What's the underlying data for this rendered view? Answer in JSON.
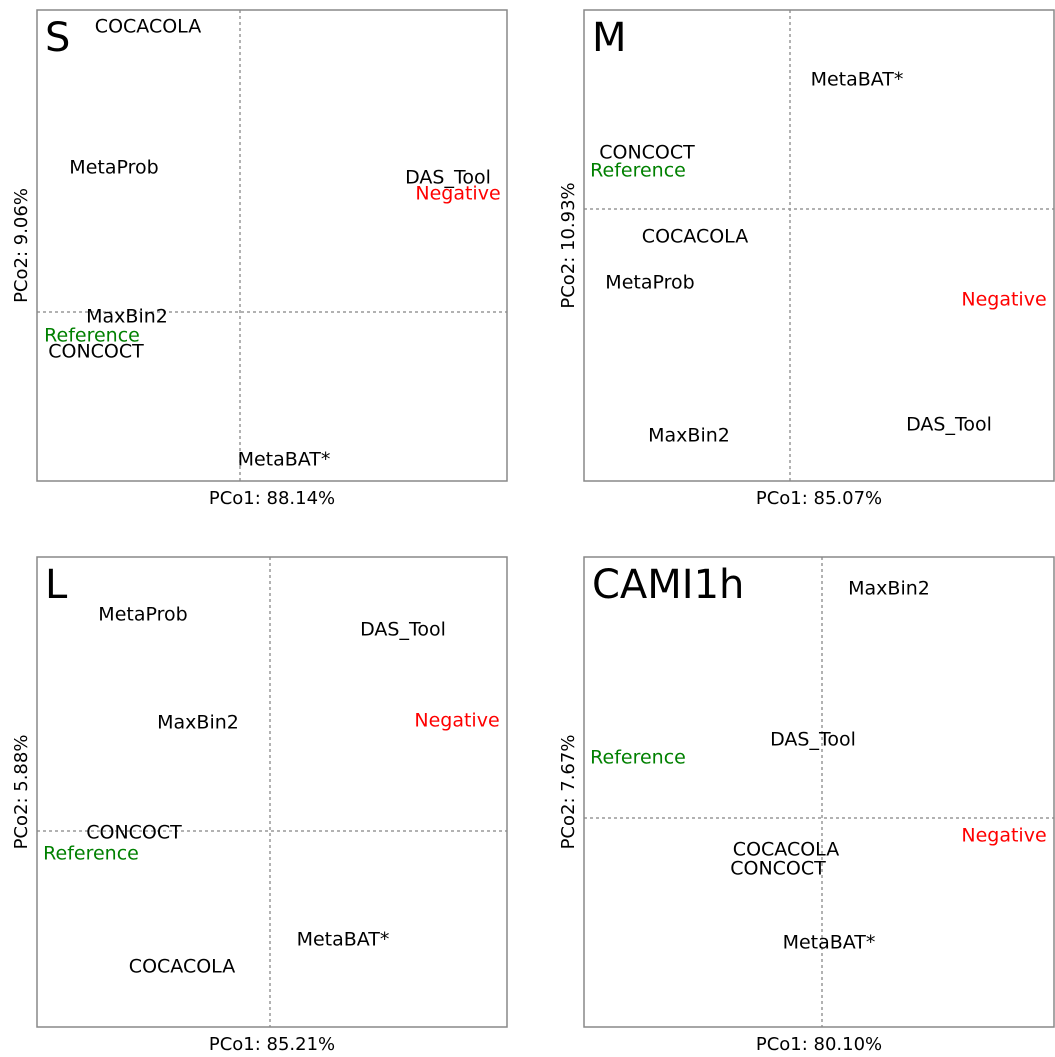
{
  "chart_data": [
    {
      "type": "scatter",
      "title": "S",
      "x_label": "PCo1: 88.14%",
      "y_label": "PCo2: 9.06%",
      "labels": [
        "COCACOLA",
        "MetaProb",
        "DAS_Tool",
        "Negative",
        "MaxBin2",
        "Reference",
        "CONCOCT",
        "MetaBAT*"
      ],
      "x": [
        -0.92,
        -1.26,
        2.08,
        2.18,
        -1.13,
        -1.48,
        -1.44,
        0.44
      ],
      "y": [
        2.85,
        1.44,
        1.34,
        1.18,
        -0.05,
        -0.24,
        -0.4,
        -1.48
      ],
      "colors": [
        "#000000",
        "#000000",
        "#000000",
        "#ff0000",
        "#000000",
        "#008000",
        "#000000",
        "#000000"
      ],
      "xlim": [
        -2.03,
        2.67
      ],
      "ylim": [
        -1.69,
        3.02
      ],
      "zero_lines": true
    },
    {
      "type": "scatter",
      "title": "M",
      "x_label": "PCo1: 85.07%",
      "y_label": "PCo2: 10.93%",
      "labels": [
        "MetaBAT*",
        "CONCOCT",
        "Reference",
        "COCACOLA",
        "MetaProb",
        "Negative",
        "DAS_Tool",
        "MaxBin2"
      ],
      "x": [
        0.67,
        -1.43,
        -1.52,
        -0.95,
        -1.4,
        2.14,
        1.59,
        -1.01
      ],
      "y": [
        1.29,
        0.56,
        0.38,
        -0.28,
        -0.74,
        -0.91,
        -2.16,
        -2.27
      ],
      "colors": [
        "#000000",
        "#000000",
        "#008000",
        "#000000",
        "#000000",
        "#ff0000",
        "#000000",
        "#000000"
      ],
      "xlim": [
        -2.06,
        2.64
      ],
      "ylim": [
        -2.72,
        1.99
      ],
      "zero_lines": true
    },
    {
      "type": "scatter",
      "title": "L",
      "x_label": "PCo1: 85.21%",
      "y_label": "PCo2: 5.88%",
      "labels": [
        "MetaProb",
        "DAS_Tool",
        "MaxBin2",
        "Negative",
        "CONCOCT",
        "Reference",
        "MetaBAT*",
        "COCACOLA"
      ],
      "x": [
        -1.27,
        1.33,
        -0.72,
        1.87,
        -1.36,
        -1.79,
        0.73,
        -0.88
      ],
      "y": [
        2.16,
        2.01,
        1.08,
        1.1,
        -0.02,
        -0.23,
        -1.09,
        -1.36
      ],
      "colors": [
        "#000000",
        "#000000",
        "#000000",
        "#ff0000",
        "#000000",
        "#008000",
        "#000000",
        "#000000"
      ],
      "xlim": [
        -2.33,
        2.37
      ],
      "ylim": [
        -1.96,
        2.74
      ],
      "zero_lines": true
    },
    {
      "type": "scatter",
      "title": "CAMI1h",
      "x_label": "PCo1: 80.10%",
      "y_label": "PCo2: 7.67%",
      "labels": [
        "MaxBin2",
        "DAS_Tool",
        "Reference",
        "Negative",
        "COCACOLA",
        "CONCOCT",
        "MetaBAT*"
      ],
      "x": [
        0.67,
        -0.09,
        -1.84,
        1.82,
        -0.36,
        -0.44,
        0.07
      ],
      "y": [
        2.29,
        0.78,
        0.6,
        -0.18,
        -0.32,
        -0.51,
        -1.25
      ],
      "colors": [
        "#000000",
        "#000000",
        "#008000",
        "#ff0000",
        "#000000",
        "#000000",
        "#000000"
      ],
      "xlim": [
        -2.38,
        2.32
      ],
      "ylim": [
        -2.09,
        2.61
      ],
      "zero_lines": true
    }
  ]
}
